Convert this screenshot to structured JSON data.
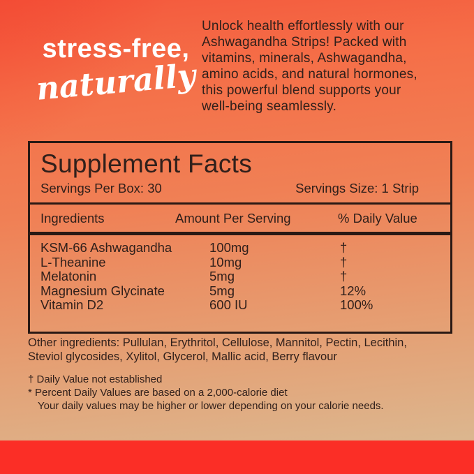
{
  "colors": {
    "text-dark": "#31201b",
    "line-dark": "#2a1914",
    "headline-white": "#ffffff",
    "bg-top": "#f4583c",
    "bg-upper": "#f56f48",
    "bg-mid": "#f08055",
    "bg-lower": "#e59f73",
    "bg-bottom": "#dcb68e",
    "accent-red": "#fb2e26"
  },
  "hero": {
    "headline": "stress-free,",
    "headline_script": "naturally",
    "description_lines": [
      "Unlock health effortlessly with our",
      "Ashwagandha Strips! Packed with",
      "vitamins, minerals, Ashwagandha,",
      "amino acids, and natural hormones,",
      "this powerful blend supports your",
      "well-being seamlessly."
    ]
  },
  "panel": {
    "title": "Supplement Facts",
    "servings_per_box": "Servings Per Box: 30",
    "serving_size": "Servings Size: 1 Strip",
    "columns": [
      "Ingredients",
      "Amount Per Serving",
      "% Daily Value"
    ],
    "rows": [
      {
        "ingredient": "KSM-66 Ashwagandha",
        "amount": "100mg",
        "dv": "†"
      },
      {
        "ingredient": "L-Theanine",
        "amount": "10mg",
        "dv": "†"
      },
      {
        "ingredient": "Melatonin",
        "amount": "5mg",
        "dv": "†"
      },
      {
        "ingredient": "Magnesium Glycinate",
        "amount": "5mg",
        "dv": "12%"
      },
      {
        "ingredient": "Vitamin D2",
        "amount": "600 IU",
        "dv": "100%"
      }
    ]
  },
  "other_ingredients_lines": [
    "Other ingredients: Pullulan, Erythritol, Cellulose, Mannitol, Pectin, Lecithin,",
    "Steviol glycosides, Xylitol, Glycerol, Mallic acid, Berry flavour"
  ],
  "footnotes": {
    "line1": "† Daily Value not established",
    "line2": "* Percent Daily Values are based on a 2,000-calorie diet",
    "line3": "Your daily values may be higher or lower depending on your calorie needs."
  }
}
